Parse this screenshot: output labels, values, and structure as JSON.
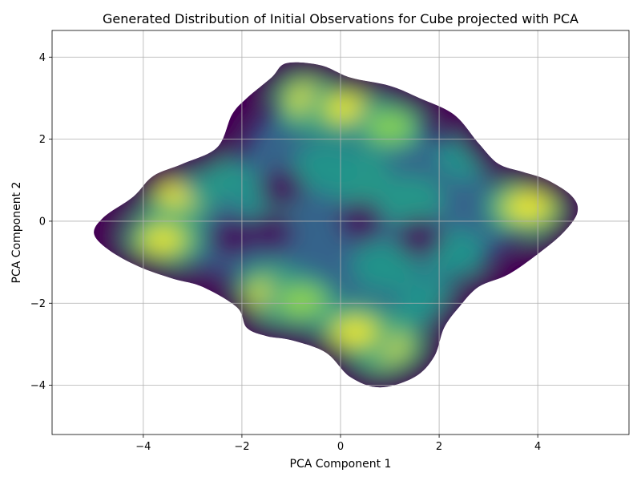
{
  "chart_data": {
    "type": "heatmap",
    "subtype": "kde-density",
    "title": "Generated Distribution of Initial Observations for Cube projected with PCA",
    "xlabel": "PCA Component 1",
    "ylabel": "PCA Component 2",
    "xlim": [
      -5.85,
      5.85
    ],
    "ylim": [
      -5.2,
      4.65
    ],
    "xticks": [
      -4,
      -2,
      0,
      2,
      4
    ],
    "yticks": [
      -4,
      -2,
      0,
      2,
      4
    ],
    "xtick_labels": [
      "−4",
      "−2",
      "0",
      "2",
      "4"
    ],
    "ytick_labels": [
      "−4",
      "−2",
      "0",
      "2",
      "4"
    ],
    "grid": true,
    "colormap": "viridis",
    "colors": {
      "low": "#440154",
      "mid": "#21918c",
      "high": "#fde725"
    },
    "density_support": [
      [
        -5.0,
        -0.3
      ],
      [
        -4.8,
        0.1
      ],
      [
        -4.2,
        0.6
      ],
      [
        -3.8,
        1.1
      ],
      [
        -3.2,
        1.4
      ],
      [
        -2.5,
        1.8
      ],
      [
        -2.2,
        2.6
      ],
      [
        -1.9,
        3.0
      ],
      [
        -1.4,
        3.5
      ],
      [
        -1.1,
        3.85
      ],
      [
        -0.4,
        3.8
      ],
      [
        0.2,
        3.5
      ],
      [
        1.0,
        3.3
      ],
      [
        1.6,
        3.0
      ],
      [
        2.3,
        2.6
      ],
      [
        2.8,
        1.9
      ],
      [
        3.2,
        1.4
      ],
      [
        3.7,
        1.2
      ],
      [
        4.2,
        1.0
      ],
      [
        4.7,
        0.6
      ],
      [
        4.8,
        0.2
      ],
      [
        4.5,
        -0.3
      ],
      [
        4.0,
        -0.8
      ],
      [
        3.4,
        -1.3
      ],
      [
        2.8,
        -1.6
      ],
      [
        2.4,
        -2.1
      ],
      [
        2.1,
        -2.6
      ],
      [
        1.9,
        -3.3
      ],
      [
        1.5,
        -3.8
      ],
      [
        0.8,
        -4.05
      ],
      [
        0.2,
        -3.8
      ],
      [
        -0.3,
        -3.2
      ],
      [
        -1.0,
        -2.9
      ],
      [
        -1.5,
        -2.8
      ],
      [
        -1.9,
        -2.6
      ],
      [
        -2.1,
        -2.1
      ],
      [
        -2.8,
        -1.6
      ],
      [
        -3.4,
        -1.4
      ],
      [
        -4.1,
        -1.1
      ],
      [
        -4.7,
        -0.7
      ]
    ],
    "hotspots": [
      {
        "x": -0.5,
        "y": 2.95,
        "level": 1.0
      },
      {
        "x": 0.1,
        "y": 2.75,
        "level": 0.8
      },
      {
        "x": 1.0,
        "y": 2.3,
        "level": 0.55
      },
      {
        "x": 0.8,
        "y": -3.0,
        "level": 1.0
      },
      {
        "x": 0.3,
        "y": -2.7,
        "level": 0.85
      },
      {
        "x": -1.4,
        "y": -1.8,
        "level": 0.85
      },
      {
        "x": -0.8,
        "y": -1.95,
        "level": 0.6
      },
      {
        "x": -3.6,
        "y": -0.45,
        "level": 0.8
      },
      {
        "x": -3.3,
        "y": 0.7,
        "level": 0.85
      },
      {
        "x": 3.8,
        "y": 0.35,
        "level": 0.9
      },
      {
        "x": 0.3,
        "y": 1.1,
        "level": 0.5
      },
      {
        "x": -0.3,
        "y": 1.3,
        "level": 0.4
      },
      {
        "x": 1.4,
        "y": 0.5,
        "level": 0.45
      },
      {
        "x": 0.9,
        "y": -1.1,
        "level": 0.4
      },
      {
        "x": 2.3,
        "y": -0.8,
        "level": 0.35
      },
      {
        "x": -2.6,
        "y": 1.1,
        "level": 0.45
      },
      {
        "x": 2.6,
        "y": 1.6,
        "level": 0.35
      },
      {
        "x": -1.5,
        "y": 0.6,
        "level": 0.35
      },
      {
        "x": 1.8,
        "y": -2.0,
        "level": 0.35
      }
    ],
    "cold_spots": [
      {
        "x": -1.4,
        "y": -0.25
      },
      {
        "x": -2.2,
        "y": -0.4
      },
      {
        "x": -1.2,
        "y": 0.8
      },
      {
        "x": 1.6,
        "y": -0.4
      },
      {
        "x": 0.4,
        "y": 0.0
      }
    ]
  }
}
